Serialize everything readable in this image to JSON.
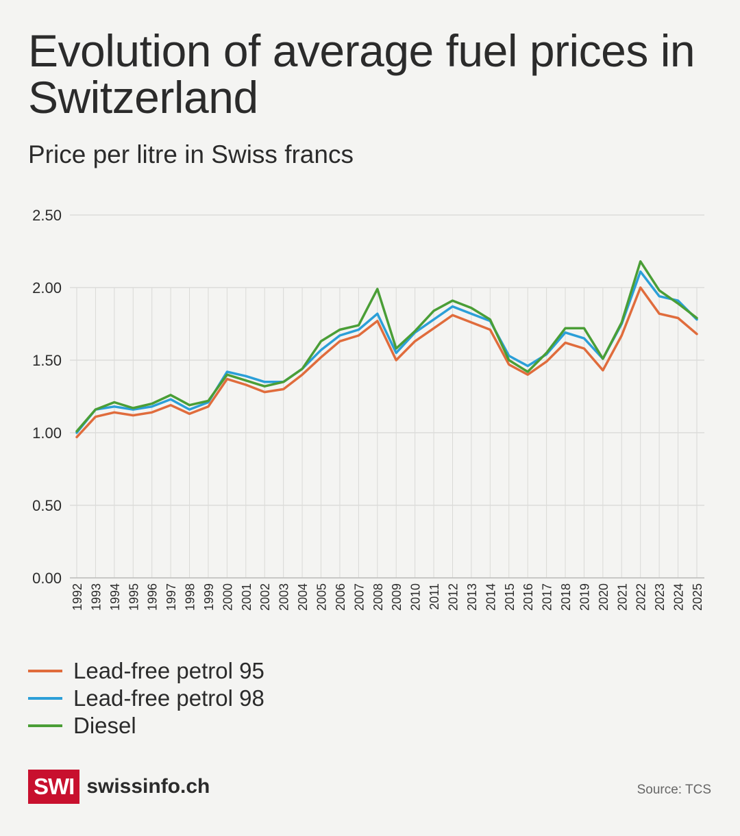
{
  "title": "Evolution of average fuel prices in Switzerland",
  "subtitle": "Price per litre in Swiss francs",
  "brand": {
    "box": "SWI",
    "name": "swissinfo.ch"
  },
  "source": "Source: TCS",
  "chart_data": {
    "type": "line",
    "title": "Evolution of average fuel prices in Switzerland",
    "ylabel": "Price per litre in Swiss francs",
    "xlabel": "",
    "ylim": [
      0,
      2.5
    ],
    "yticks": [
      "0.00",
      "0.50",
      "1.00",
      "1.50",
      "2.00",
      "2.50"
    ],
    "grid": true,
    "legend": "bottom-left",
    "x": [
      "1992",
      "1993",
      "1994",
      "1995",
      "1996",
      "1997",
      "1998",
      "1999",
      "2000",
      "2001",
      "2002",
      "2003",
      "2004",
      "2005",
      "2006",
      "2007",
      "2008",
      "2009",
      "2010",
      "2011",
      "2012",
      "2013",
      "2014",
      "2015",
      "2016",
      "2017",
      "2018",
      "2019",
      "2020",
      "2021",
      "2022",
      "2023",
      "2024",
      "2025"
    ],
    "series": [
      {
        "name": "Lead-free petrol 95",
        "color": "#e06c3c",
        "values": [
          0.97,
          1.11,
          1.14,
          1.12,
          1.14,
          1.19,
          1.13,
          1.18,
          1.37,
          1.33,
          1.28,
          1.3,
          1.4,
          1.52,
          1.63,
          1.67,
          1.77,
          1.5,
          1.63,
          1.72,
          1.81,
          1.76,
          1.71,
          1.47,
          1.4,
          1.49,
          1.62,
          1.58,
          1.43,
          1.67,
          2.0,
          1.82,
          1.79,
          1.68
        ]
      },
      {
        "name": "Lead-free petrol 98",
        "color": "#2b9fd8",
        "values": [
          1.0,
          1.16,
          1.18,
          1.16,
          1.18,
          1.23,
          1.16,
          1.21,
          1.42,
          1.39,
          1.35,
          1.35,
          1.44,
          1.57,
          1.67,
          1.71,
          1.82,
          1.55,
          1.69,
          1.78,
          1.87,
          1.82,
          1.77,
          1.53,
          1.46,
          1.54,
          1.69,
          1.65,
          1.51,
          1.75,
          2.11,
          1.94,
          1.91,
          1.78
        ]
      },
      {
        "name": "Diesel",
        "color": "#4a9e36",
        "values": [
          1.01,
          1.16,
          1.21,
          1.17,
          1.2,
          1.26,
          1.19,
          1.22,
          1.4,
          1.36,
          1.32,
          1.35,
          1.44,
          1.63,
          1.71,
          1.74,
          1.99,
          1.58,
          1.7,
          1.84,
          1.91,
          1.86,
          1.78,
          1.5,
          1.42,
          1.55,
          1.72,
          1.72,
          1.51,
          1.76,
          2.18,
          1.98,
          1.89,
          1.79
        ]
      }
    ]
  }
}
